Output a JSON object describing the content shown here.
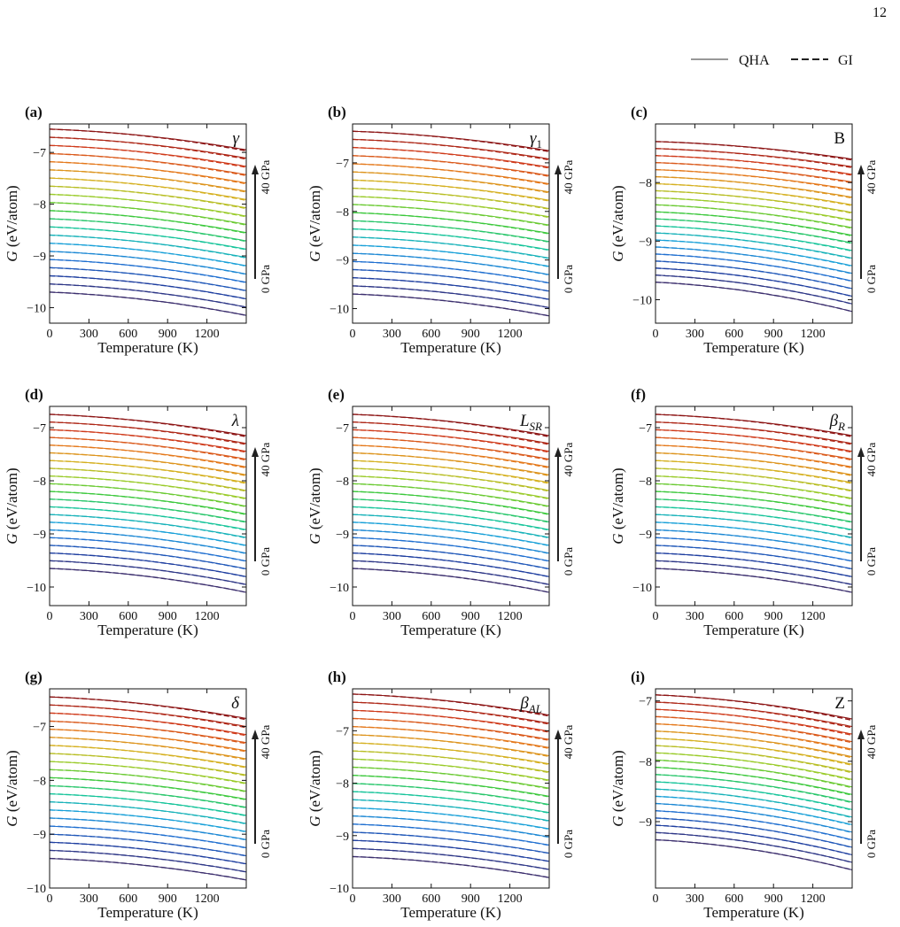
{
  "page_number": "12",
  "legend": {
    "solid_label": "QHA",
    "dashed_label": "GI"
  },
  "pressure_annotation": {
    "low": "0 GPa",
    "high": "40 GPa"
  },
  "colors": {
    "pressure_colormap": [
      "#3c2f6e",
      "#1f3fa0",
      "#1f6fd0",
      "#18a0d8",
      "#16c49a",
      "#3cc83c",
      "#9acb2a",
      "#d5b020",
      "#e4781a",
      "#cf3a1a",
      "#8c1414"
    ],
    "axes": "#111111"
  },
  "chart_data": [
    {
      "panel": "(a)",
      "phase": "γ",
      "type": "line",
      "xlabel": "Temperature (K)",
      "ylabel": "G (eV/atom)",
      "xlim": [
        0,
        1500
      ],
      "ylim": [
        -10.3,
        -6.45
      ],
      "xticks": [
        0,
        300,
        600,
        900,
        1200
      ],
      "yticks": [
        -10,
        -9,
        -8,
        -7
      ],
      "g_at_0K_0GPa": -9.7,
      "g_at_0K_40GPa": -6.55,
      "g_at_1500K_0GPa": -10.15,
      "g_at_1500K_40GPa": -6.95,
      "curves": 21
    },
    {
      "panel": "(b)",
      "phase": "γ1",
      "type": "line",
      "xlabel": "Temperature (K)",
      "ylabel": "G (eV/atom)",
      "xlim": [
        0,
        1500
      ],
      "ylim": [
        -10.3,
        -6.2
      ],
      "xticks": [
        0,
        300,
        600,
        900,
        1200
      ],
      "yticks": [
        -10,
        -9,
        -8,
        -7
      ],
      "g_at_0K_0GPa": -9.7,
      "g_at_0K_40GPa": -6.35,
      "g_at_1500K_0GPa": -10.15,
      "g_at_1500K_40GPa": -6.75,
      "curves": 21
    },
    {
      "panel": "(c)",
      "phase": "B",
      "type": "line",
      "xlabel": "Temperature (K)",
      "ylabel": "G (eV/atom)",
      "xlim": [
        0,
        1500
      ],
      "ylim": [
        -10.4,
        -7.0
      ],
      "xticks": [
        0,
        300,
        600,
        900,
        1200
      ],
      "yticks": [
        -10,
        -9,
        -8
      ],
      "g_at_0K_0GPa": -9.7,
      "g_at_0K_40GPa": -7.3,
      "g_at_1500K_0GPa": -10.2,
      "g_at_1500K_40GPa": -7.6,
      "curves": 21
    },
    {
      "panel": "(d)",
      "phase": "λ",
      "type": "line",
      "xlabel": "Temperature (K)",
      "ylabel": "G (eV/atom)",
      "xlim": [
        0,
        1500
      ],
      "ylim": [
        -10.35,
        -6.6
      ],
      "xticks": [
        0,
        300,
        600,
        900,
        1200
      ],
      "yticks": [
        -10,
        -9,
        -8,
        -7
      ],
      "g_at_0K_0GPa": -9.65,
      "g_at_0K_40GPa": -6.75,
      "g_at_1500K_0GPa": -10.1,
      "g_at_1500K_40GPa": -7.15,
      "curves": 21
    },
    {
      "panel": "(e)",
      "phase": "L_SR",
      "type": "line",
      "xlabel": "Temperature (K)",
      "ylabel": "G (eV/atom)",
      "xlim": [
        0,
        1500
      ],
      "ylim": [
        -10.35,
        -6.6
      ],
      "xticks": [
        0,
        300,
        600,
        900,
        1200
      ],
      "yticks": [
        -10,
        -9,
        -8,
        -7
      ],
      "g_at_0K_0GPa": -9.65,
      "g_at_0K_40GPa": -6.75,
      "g_at_1500K_0GPa": -10.1,
      "g_at_1500K_40GPa": -7.15,
      "curves": 21
    },
    {
      "panel": "(f)",
      "phase": "β_R",
      "type": "line",
      "xlabel": "Temperature (K)",
      "ylabel": "G (eV/atom)",
      "xlim": [
        0,
        1500
      ],
      "ylim": [
        -10.35,
        -6.6
      ],
      "xticks": [
        0,
        300,
        600,
        900,
        1200
      ],
      "yticks": [
        -10,
        -9,
        -8,
        -7
      ],
      "g_at_0K_0GPa": -9.65,
      "g_at_0K_40GPa": -6.75,
      "g_at_1500K_0GPa": -10.1,
      "g_at_1500K_40GPa": -7.15,
      "curves": 21
    },
    {
      "panel": "(g)",
      "phase": "δ",
      "type": "line",
      "xlabel": "Temperature (K)",
      "ylabel": "G (eV/atom)",
      "xlim": [
        0,
        1500
      ],
      "ylim": [
        -10.0,
        -6.3
      ],
      "xticks": [
        0,
        300,
        600,
        900,
        1200
      ],
      "yticks": [
        -10,
        -9,
        -8,
        -7
      ],
      "g_at_0K_0GPa": -9.45,
      "g_at_0K_40GPa": -6.45,
      "g_at_1500K_0GPa": -9.85,
      "g_at_1500K_40GPa": -6.85,
      "curves": 21
    },
    {
      "panel": "(h)",
      "phase": "β_AL",
      "type": "line",
      "xlabel": "Temperature (K)",
      "ylabel": "G (eV/atom)",
      "xlim": [
        0,
        1500
      ],
      "ylim": [
        -10.0,
        -6.2
      ],
      "xticks": [
        0,
        300,
        600,
        900,
        1200
      ],
      "yticks": [
        -10,
        -9,
        -8,
        -7
      ],
      "g_at_0K_0GPa": -9.4,
      "g_at_0K_40GPa": -6.3,
      "g_at_1500K_0GPa": -9.8,
      "g_at_1500K_40GPa": -6.7,
      "curves": 21
    },
    {
      "panel": "(i)",
      "phase": "Z",
      "type": "line",
      "xlabel": "Temperature (K)",
      "ylabel": "G (eV/atom)",
      "xlim": [
        0,
        1500
      ],
      "ylim": [
        -10.1,
        -6.8
      ],
      "xticks": [
        0,
        300,
        600,
        900,
        1200
      ],
      "yticks": [
        -9,
        -8,
        -7
      ],
      "g_at_0K_0GPa": -9.3,
      "g_at_0K_40GPa": -6.9,
      "g_at_1500K_0GPa": -9.8,
      "g_at_1500K_40GPa": -7.3,
      "curves": 21
    }
  ]
}
